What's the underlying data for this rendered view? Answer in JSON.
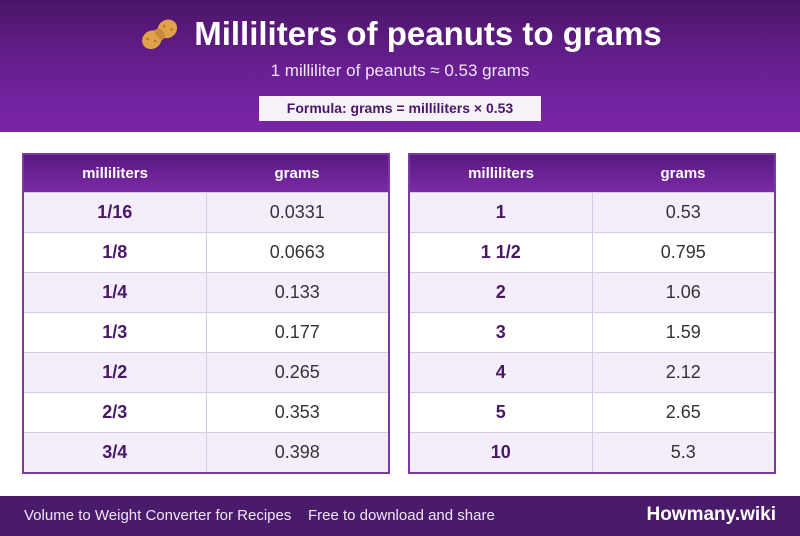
{
  "header": {
    "title": "Milliliters of peanuts to grams",
    "subtitle": "1 milliliter of peanuts ≈ 0.53 grams",
    "formula": "Formula: grams = milliliters × 0.53",
    "icon": "peanut-icon"
  },
  "table_left": {
    "columns": [
      "milliliters",
      "grams"
    ],
    "rows": [
      [
        "1/16",
        "0.0331"
      ],
      [
        "1/8",
        "0.0663"
      ],
      [
        "1/4",
        "0.133"
      ],
      [
        "1/3",
        "0.177"
      ],
      [
        "1/2",
        "0.265"
      ],
      [
        "2/3",
        "0.353"
      ],
      [
        "3/4",
        "0.398"
      ]
    ]
  },
  "table_right": {
    "columns": [
      "milliliters",
      "grams"
    ],
    "rows": [
      [
        "1",
        "0.53"
      ],
      [
        "1 1/2",
        "0.795"
      ],
      [
        "2",
        "1.06"
      ],
      [
        "3",
        "1.59"
      ],
      [
        "4",
        "2.12"
      ],
      [
        "5",
        "2.65"
      ],
      [
        "10",
        "5.3"
      ]
    ]
  },
  "footer": {
    "left_text": "Volume to Weight Converter for Recipes",
    "middle_text": "Free to download and share",
    "brand": "Howmany.wiki"
  },
  "colors": {
    "primary": "#6a1f94",
    "footer": "#4a1b6b",
    "row_alt": "#f4eefa"
  }
}
